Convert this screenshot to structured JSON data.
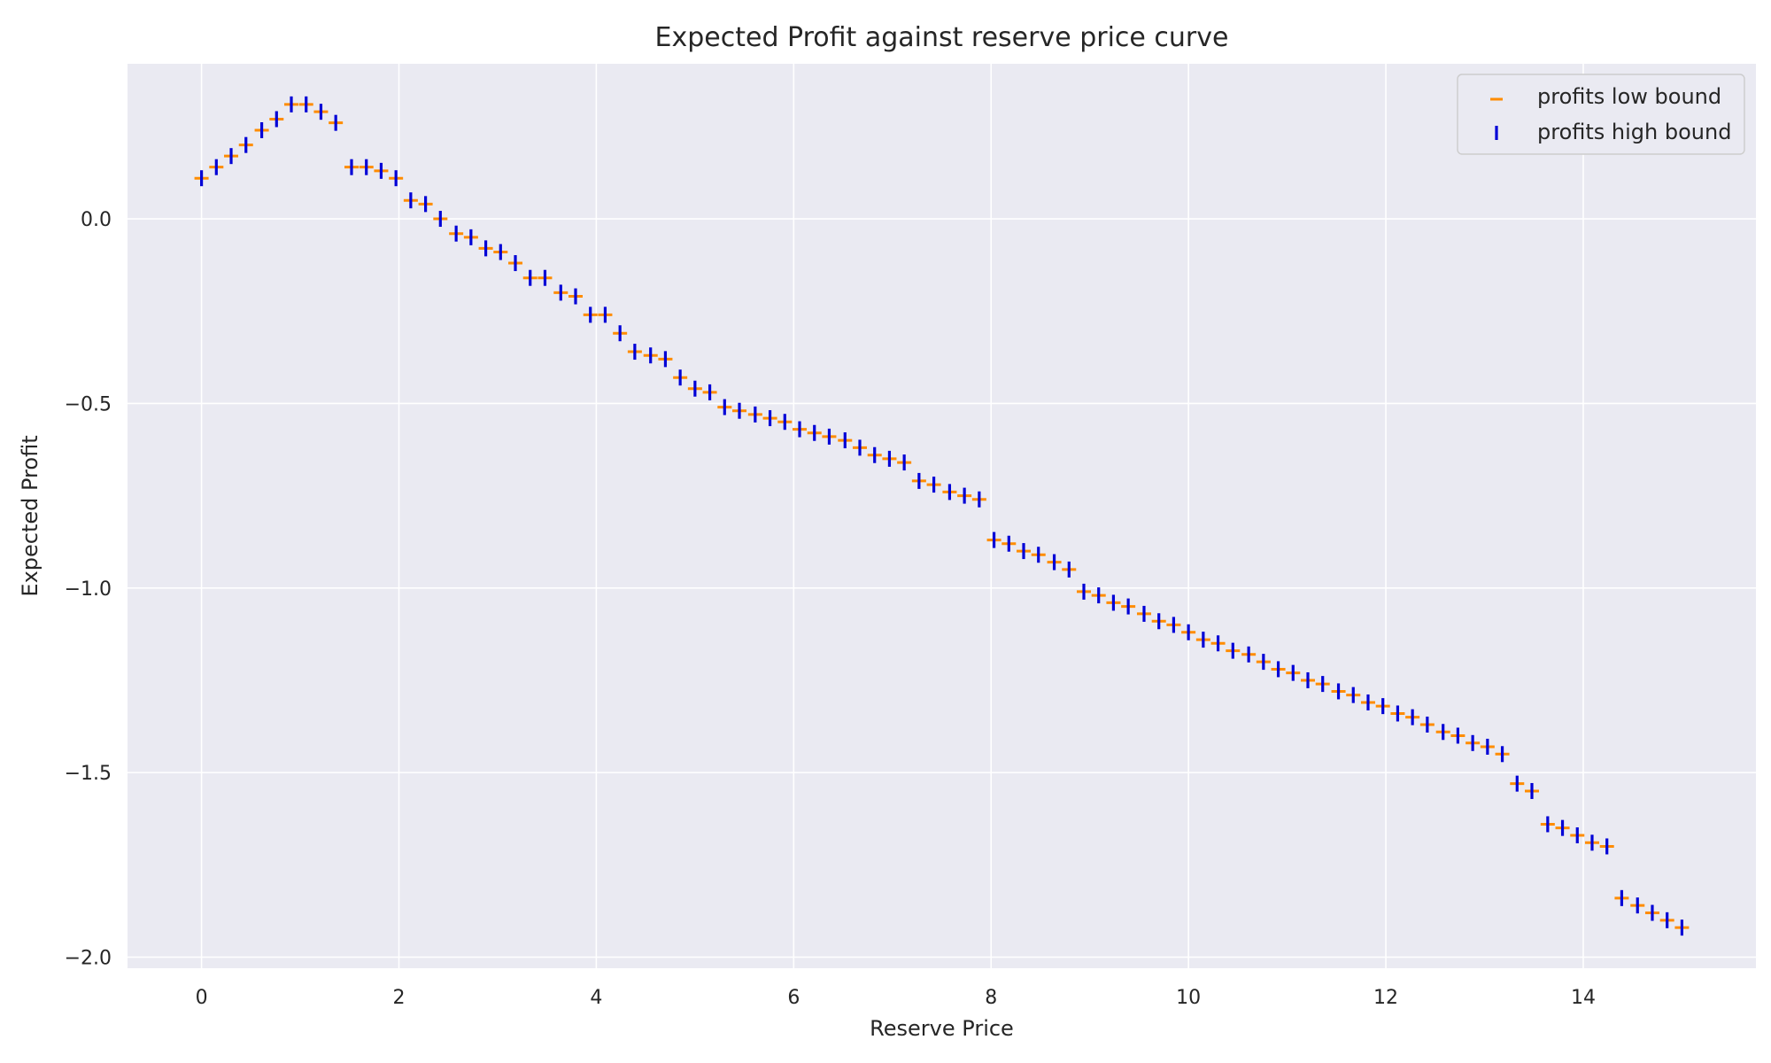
{
  "chart_data": {
    "type": "scatter",
    "title": "Expected Profit against reserve price curve",
    "xlabel": "Reserve Price",
    "ylabel": "Expected Profit",
    "xlim": [
      -0.75,
      15.75
    ],
    "ylim": [
      -2.03,
      0.42
    ],
    "grid": true,
    "legend_position": "top-right",
    "x_ticks": [
      0,
      2,
      4,
      6,
      8,
      10,
      12,
      14
    ],
    "x_tick_labels": [
      "0",
      "2",
      "4",
      "6",
      "8",
      "10",
      "12",
      "14"
    ],
    "y_ticks": [
      0.0,
      -0.5,
      -1.0,
      -1.5,
      -2.0
    ],
    "y_tick_labels": [
      "0.0",
      "−0.5",
      "−1.0",
      "−1.5",
      "−2.0"
    ],
    "x": [
      0.0,
      0.15,
      0.3,
      0.45,
      0.61,
      0.76,
      0.91,
      1.06,
      1.21,
      1.36,
      1.52,
      1.67,
      1.82,
      1.97,
      2.12,
      2.27,
      2.42,
      2.58,
      2.73,
      2.88,
      3.03,
      3.18,
      3.33,
      3.48,
      3.64,
      3.79,
      3.94,
      4.09,
      4.24,
      4.39,
      4.55,
      4.7,
      4.85,
      5.0,
      5.15,
      5.3,
      5.45,
      5.61,
      5.76,
      5.91,
      6.06,
      6.21,
      6.36,
      6.52,
      6.67,
      6.82,
      6.97,
      7.12,
      7.27,
      7.42,
      7.58,
      7.73,
      7.88,
      8.03,
      8.18,
      8.33,
      8.48,
      8.64,
      8.79,
      8.94,
      9.09,
      9.24,
      9.39,
      9.55,
      9.7,
      9.85,
      10.0,
      10.15,
      10.3,
      10.45,
      10.61,
      10.76,
      10.91,
      11.06,
      11.21,
      11.36,
      11.52,
      11.67,
      11.82,
      11.97,
      12.12,
      12.27,
      12.42,
      12.58,
      12.73,
      12.88,
      13.03,
      13.18,
      13.33,
      13.48,
      13.64,
      13.79,
      13.94,
      14.09,
      14.24,
      14.39,
      14.55,
      14.7,
      14.85,
      15.0
    ],
    "series": [
      {
        "name": "profits low bound",
        "color": "#ff8c00",
        "marker": "hline",
        "values": [
          0.11,
          0.14,
          0.17,
          0.2,
          0.24,
          0.27,
          0.31,
          0.31,
          0.29,
          0.26,
          0.14,
          0.14,
          0.13,
          0.11,
          0.05,
          0.04,
          0.0,
          -0.04,
          -0.05,
          -0.08,
          -0.09,
          -0.12,
          -0.16,
          -0.16,
          -0.2,
          -0.21,
          -0.26,
          -0.26,
          -0.31,
          -0.36,
          -0.37,
          -0.38,
          -0.43,
          -0.46,
          -0.47,
          -0.51,
          -0.52,
          -0.53,
          -0.54,
          -0.55,
          -0.57,
          -0.58,
          -0.59,
          -0.6,
          -0.62,
          -0.64,
          -0.65,
          -0.66,
          -0.71,
          -0.72,
          -0.74,
          -0.75,
          -0.76,
          -0.87,
          -0.88,
          -0.9,
          -0.91,
          -0.93,
          -0.95,
          -1.01,
          -1.02,
          -1.04,
          -1.05,
          -1.07,
          -1.09,
          -1.1,
          -1.12,
          -1.14,
          -1.15,
          -1.17,
          -1.18,
          -1.2,
          -1.22,
          -1.23,
          -1.25,
          -1.26,
          -1.28,
          -1.29,
          -1.31,
          -1.32,
          -1.34,
          -1.35,
          -1.37,
          -1.39,
          -1.4,
          -1.42,
          -1.43,
          -1.45,
          -1.53,
          -1.55,
          -1.64,
          -1.65,
          -1.67,
          -1.69,
          -1.7,
          -1.84,
          -1.86,
          -1.88,
          -1.9,
          -1.92
        ]
      },
      {
        "name": "profits high bound",
        "color": "#0000d6",
        "marker": "vline",
        "values": [
          0.11,
          0.14,
          0.17,
          0.2,
          0.24,
          0.27,
          0.31,
          0.31,
          0.29,
          0.26,
          0.14,
          0.14,
          0.13,
          0.11,
          0.05,
          0.04,
          0.0,
          -0.04,
          -0.05,
          -0.08,
          -0.09,
          -0.12,
          -0.16,
          -0.16,
          -0.2,
          -0.21,
          -0.26,
          -0.26,
          -0.31,
          -0.36,
          -0.37,
          -0.38,
          -0.43,
          -0.46,
          -0.47,
          -0.51,
          -0.52,
          -0.53,
          -0.54,
          -0.55,
          -0.57,
          -0.58,
          -0.59,
          -0.6,
          -0.62,
          -0.64,
          -0.65,
          -0.66,
          -0.71,
          -0.72,
          -0.74,
          -0.75,
          -0.76,
          -0.87,
          -0.88,
          -0.9,
          -0.91,
          -0.93,
          -0.95,
          -1.01,
          -1.02,
          -1.04,
          -1.05,
          -1.07,
          -1.09,
          -1.1,
          -1.12,
          -1.14,
          -1.15,
          -1.17,
          -1.18,
          -1.2,
          -1.22,
          -1.23,
          -1.25,
          -1.26,
          -1.28,
          -1.29,
          -1.31,
          -1.32,
          -1.34,
          -1.35,
          -1.37,
          -1.39,
          -1.4,
          -1.42,
          -1.43,
          -1.45,
          -1.53,
          -1.55,
          -1.64,
          -1.65,
          -1.67,
          -1.69,
          -1.7,
          -1.84,
          -1.86,
          -1.88,
          -1.9,
          -1.92
        ]
      }
    ],
    "colors": {
      "plot_background": "#eaeaf2",
      "grid": "#ffffff",
      "text": "#262626"
    }
  }
}
